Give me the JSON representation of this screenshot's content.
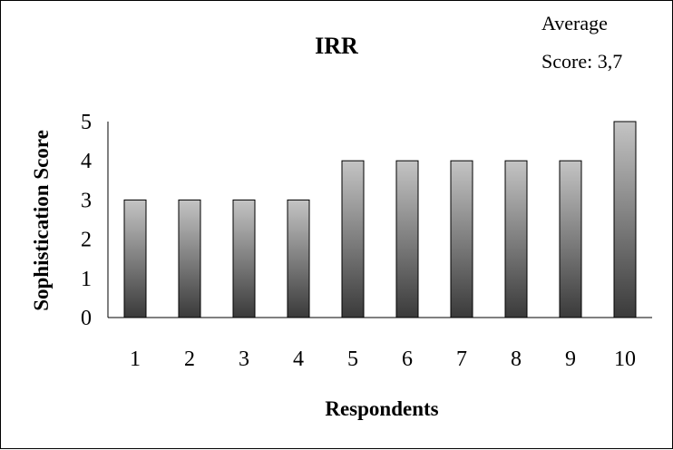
{
  "chart_data": {
    "type": "bar",
    "title": "IRR",
    "annotation": [
      "Average",
      "Score: 3,7"
    ],
    "xlabel": "Respondents",
    "ylabel": "Sophistication Score",
    "categories": [
      "1",
      "2",
      "3",
      "4",
      "5",
      "6",
      "7",
      "8",
      "9",
      "10"
    ],
    "values": [
      3,
      3,
      3,
      3,
      4,
      4,
      4,
      4,
      4,
      5
    ],
    "ylim": [
      0,
      5
    ],
    "yticks": [
      "0",
      "1",
      "2",
      "3",
      "4",
      "5"
    ],
    "grid": false,
    "legend": "none",
    "bar_fill": "gradient gray (light top, dark bottom)"
  },
  "colors": {
    "bar_top": "#c4c4c4",
    "bar_bottom": "#3a3a3a",
    "axis": "#000000",
    "background": "#ffffff"
  }
}
